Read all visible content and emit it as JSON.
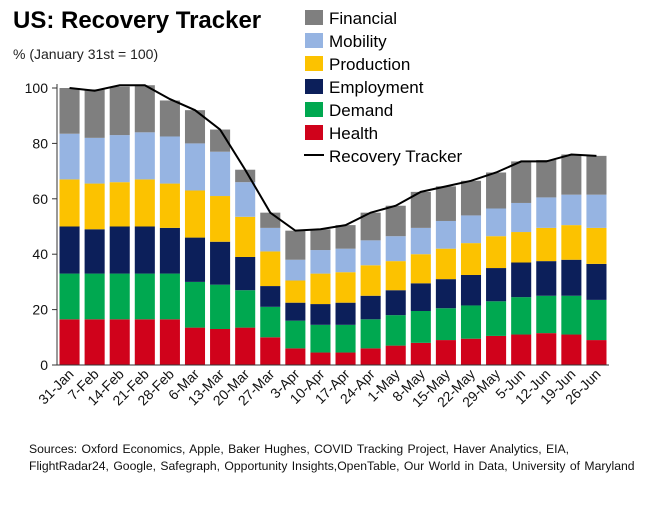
{
  "chart_data": {
    "type": "bar",
    "stacked": true,
    "title": "US: Recovery Tracker",
    "subtitle": "% (January 31st = 100)",
    "xlabel": "",
    "ylabel": "",
    "ylim": [
      0,
      100
    ],
    "yticks": [
      0,
      20,
      40,
      60,
      80,
      100
    ],
    "grid": false,
    "legend_position": "top-right",
    "categories": [
      "31-Jan",
      "7-Feb",
      "14-Feb",
      "21-Feb",
      "28-Feb",
      "6-Mar",
      "13-Mar",
      "20-Mar",
      "27-Mar",
      "3-Apr",
      "10-Apr",
      "17-Apr",
      "24-Apr",
      "1-May",
      "8-May",
      "15-May",
      "22-May",
      "29-May",
      "5-Jun",
      "12-Jun",
      "19-Jun",
      "26-Jun"
    ],
    "series": [
      {
        "name": "Health",
        "color": "#d0021b",
        "values": [
          16.5,
          16.5,
          16.5,
          16.5,
          16.5,
          13.5,
          13,
          13.5,
          10,
          6,
          4.5,
          4.5,
          6,
          7,
          8,
          9,
          9.5,
          10.5,
          11,
          11.5,
          11,
          9
        ]
      },
      {
        "name": "Demand",
        "color": "#00a850",
        "values": [
          16.5,
          16.5,
          16.5,
          16.5,
          16.5,
          16.5,
          16,
          13.5,
          11,
          10,
          10,
          10,
          10.5,
          11,
          11.5,
          11.5,
          12,
          12.5,
          13.5,
          13.5,
          14,
          14.5
        ]
      },
      {
        "name": "Employment",
        "color": "#0c1f5a",
        "values": [
          17,
          16,
          17,
          17,
          16.5,
          16,
          15.5,
          12,
          7.5,
          6.5,
          7.5,
          8,
          8.5,
          9,
          10,
          10.5,
          11,
          12,
          12.5,
          12.5,
          13,
          13
        ]
      },
      {
        "name": "Production",
        "color": "#fcc200",
        "values": [
          17,
          16.5,
          16,
          17,
          16,
          17,
          16.5,
          14.5,
          12.5,
          8,
          11,
          11,
          11,
          10.5,
          10.5,
          11,
          11.5,
          11.5,
          11,
          12,
          12.5,
          13
        ]
      },
      {
        "name": "Mobility",
        "color": "#96b4e2",
        "values": [
          16.5,
          16.5,
          17,
          17,
          17,
          17,
          16,
          12.5,
          8.5,
          7.5,
          8.5,
          8.5,
          9,
          9,
          9.5,
          10,
          10,
          10,
          10.5,
          11,
          11,
          12
        ]
      },
      {
        "name": "Financial",
        "color": "#7f7f7f",
        "values": [
          16.5,
          17.5,
          17.5,
          17,
          13,
          12,
          8,
          4.5,
          5.5,
          10.5,
          7.5,
          8.5,
          10,
          11,
          13,
          12.5,
          12.5,
          13,
          15,
          13.5,
          14.5,
          14
        ]
      }
    ],
    "line": {
      "name": "Recovery Tracker",
      "color": "#000000",
      "values": [
        100,
        99,
        101,
        101,
        96,
        92,
        85,
        70.5,
        55,
        48.5,
        49,
        50.5,
        55,
        57.5,
        62.5,
        64.5,
        66.5,
        69.5,
        73.5,
        73.5,
        76,
        75.5
      ]
    }
  },
  "sources": "Sources: Oxford Economics, Apple, Baker Hughes, COVID Tracking Project, Haver Analytics, EIA, FlightRadar24, Google, Safegraph, Opportunity Insights,OpenTable, Our World in Data, University of Maryland"
}
